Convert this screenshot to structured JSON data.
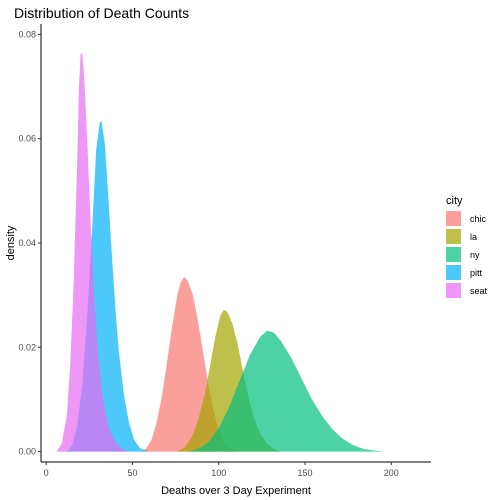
{
  "chart_data": {
    "type": "area",
    "title": "Distribution of Death Counts",
    "xlabel": "Deaths over 3 Day Experiment",
    "ylabel": "density",
    "xlim": [
      -3,
      223
    ],
    "ylim": [
      -0.002,
      0.082
    ],
    "x_ticks": [
      0,
      50,
      100,
      150,
      200
    ],
    "y_ticks": [
      0.0,
      0.02,
      0.04,
      0.06,
      0.08
    ],
    "x_tick_labels": [
      "0",
      "50",
      "100",
      "150",
      "200"
    ],
    "y_tick_labels": [
      "0.00",
      "0.02",
      "0.04",
      "0.06",
      "0.08"
    ],
    "grid": false,
    "legend": {
      "title": "city",
      "position": "right"
    },
    "series": [
      {
        "name": "chic",
        "color": "#F8766D",
        "points": [
          [
            55,
            0.0
          ],
          [
            58,
            0.0006
          ],
          [
            61,
            0.0022
          ],
          [
            64,
            0.0055
          ],
          [
            67,
            0.0105
          ],
          [
            70,
            0.017
          ],
          [
            73,
            0.024
          ],
          [
            76,
            0.03
          ],
          [
            78,
            0.0325
          ],
          [
            80,
            0.0335
          ],
          [
            82,
            0.0328
          ],
          [
            85,
            0.03
          ],
          [
            88,
            0.025
          ],
          [
            91,
            0.019
          ],
          [
            94,
            0.0128
          ],
          [
            97,
            0.0078
          ],
          [
            100,
            0.0042
          ],
          [
            103,
            0.002
          ],
          [
            106,
            0.0008
          ],
          [
            110,
            0.0002
          ],
          [
            113,
            0.0
          ]
        ]
      },
      {
        "name": "la",
        "color": "#A3A500",
        "points": [
          [
            76,
            0.0
          ],
          [
            80,
            0.0007
          ],
          [
            84,
            0.0025
          ],
          [
            88,
            0.006
          ],
          [
            92,
            0.011
          ],
          [
            95,
            0.0165
          ],
          [
            98,
            0.022
          ],
          [
            101,
            0.0262
          ],
          [
            103,
            0.0272
          ],
          [
            105,
            0.0268
          ],
          [
            108,
            0.0245
          ],
          [
            111,
            0.0205
          ],
          [
            114,
            0.0155
          ],
          [
            117,
            0.0108
          ],
          [
            120,
            0.0068
          ],
          [
            124,
            0.0035
          ],
          [
            128,
            0.0015
          ],
          [
            132,
            0.0005
          ],
          [
            136,
            0.0
          ]
        ]
      },
      {
        "name": "ny",
        "color": "#00BF7D",
        "points": [
          [
            82,
            0.0
          ],
          [
            88,
            0.0005
          ],
          [
            94,
            0.0018
          ],
          [
            100,
            0.0045
          ],
          [
            106,
            0.0085
          ],
          [
            112,
            0.0135
          ],
          [
            118,
            0.0185
          ],
          [
            124,
            0.022
          ],
          [
            128,
            0.0232
          ],
          [
            132,
            0.0228
          ],
          [
            136,
            0.0212
          ],
          [
            142,
            0.018
          ],
          [
            148,
            0.014
          ],
          [
            154,
            0.01
          ],
          [
            160,
            0.0068
          ],
          [
            166,
            0.0042
          ],
          [
            172,
            0.0024
          ],
          [
            178,
            0.0012
          ],
          [
            184,
            0.0005
          ],
          [
            190,
            0.0002
          ],
          [
            196,
            0.0
          ]
        ]
      },
      {
        "name": "pitt",
        "color": "#00B0F6",
        "points": [
          [
            12,
            0.0
          ],
          [
            15,
            0.0012
          ],
          [
            18,
            0.005
          ],
          [
            21,
            0.013
          ],
          [
            24,
            0.027
          ],
          [
            27,
            0.045
          ],
          [
            29,
            0.058
          ],
          [
            31,
            0.063
          ],
          [
            32,
            0.0635
          ],
          [
            34,
            0.059
          ],
          [
            36,
            0.049
          ],
          [
            38,
            0.038
          ],
          [
            40,
            0.028
          ],
          [
            42,
            0.0195
          ],
          [
            45,
            0.011
          ],
          [
            48,
            0.0055
          ],
          [
            51,
            0.0022
          ],
          [
            54,
            0.0008
          ],
          [
            57,
            0.0002
          ],
          [
            60,
            0.0
          ]
        ]
      },
      {
        "name": "seat",
        "color": "#E76BF3",
        "points": [
          [
            6,
            0.0
          ],
          [
            9,
            0.0015
          ],
          [
            12,
            0.007
          ],
          [
            14,
            0.017
          ],
          [
            16,
            0.033
          ],
          [
            18,
            0.056
          ],
          [
            19,
            0.07
          ],
          [
            20,
            0.0765
          ],
          [
            21,
            0.076
          ],
          [
            22,
            0.072
          ],
          [
            24,
            0.058
          ],
          [
            26,
            0.042
          ],
          [
            28,
            0.029
          ],
          [
            30,
            0.019
          ],
          [
            33,
            0.01
          ],
          [
            36,
            0.0048
          ],
          [
            40,
            0.0018
          ],
          [
            44,
            0.0005
          ],
          [
            48,
            0.0
          ]
        ]
      }
    ]
  }
}
